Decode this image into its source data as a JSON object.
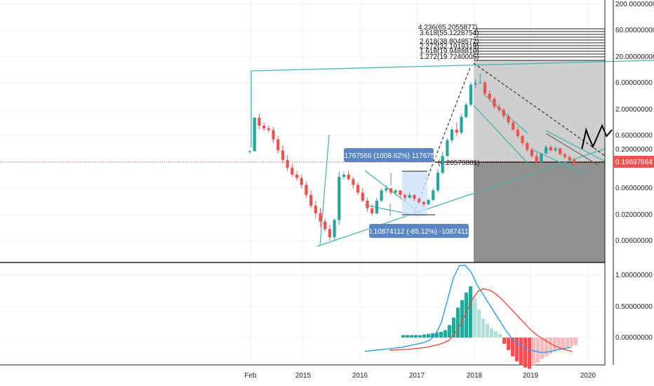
{
  "colors": {
    "up": "#26a69a",
    "up_light": "#b2dfdb",
    "down": "#ef5350",
    "down_light": "#f8bbbb",
    "macd_line": "#2196f3",
    "signal_line": "#f44336",
    "trendline": "#4db6ac",
    "price_line": "#e53935",
    "fib_band_light": "#cfcfcf",
    "fib_band_dark": "#8f8f8f",
    "measure_fill": "#cfe3fb",
    "label_bg": "#5b86c4",
    "axis_text": "#222222"
  },
  "time_axis": {
    "labels": [
      "Feb",
      "2015",
      "2016",
      "2017",
      "2018",
      "2019",
      "2020"
    ]
  },
  "price_axis": {
    "scale": "log",
    "labels": [
      "200.00000000",
      "60.00000000",
      "20.00000000",
      "6.00000000",
      "2.00000000",
      "0.60000000",
      "0.20000000",
      "0.06000000",
      "0.02000000",
      "0.00600000"
    ],
    "last_price_label": "0.19697664"
  },
  "indicator_axis": {
    "labels": [
      "1.00000000",
      "0.50000000",
      "0.00000000"
    ]
  },
  "fib_extension": {
    "labels": [
      "4.236(65.2055877)",
      "3.618(55.1228754)",
      "2.618(38.8048572)",
      "2.272(32.1919319)",
      "1.618(19.9488810)",
      "1.272(19.7240005)"
    ],
    "level_label": "(0.20570881)"
  },
  "measure_up": {
    "label": "0.11767566 (1008.62%) 11767566"
  },
  "measure_down": {
    "label": "-0.10874112 (-85.12%) -10874112"
  },
  "chart_data": {
    "type": "candlestick",
    "price_scale": "log",
    "price_range": [
      0.003,
      250
    ],
    "candles": [
      [
        0.3,
        0.32,
        0.28,
        0.31
      ],
      [
        0.31,
        1.4,
        0.3,
        1.35
      ],
      [
        1.35,
        1.6,
        0.8,
        0.95
      ],
      [
        0.95,
        1.1,
        0.75,
        0.85
      ],
      [
        0.85,
        0.95,
        0.7,
        0.78
      ],
      [
        0.78,
        0.9,
        0.45,
        0.52
      ],
      [
        0.52,
        0.6,
        0.28,
        0.32
      ],
      [
        0.32,
        0.4,
        0.18,
        0.21
      ],
      [
        0.21,
        0.26,
        0.13,
        0.15
      ],
      [
        0.15,
        0.18,
        0.1,
        0.11
      ],
      [
        0.11,
        0.13,
        0.085,
        0.095
      ],
      [
        0.095,
        0.11,
        0.06,
        0.07
      ],
      [
        0.07,
        0.08,
        0.04,
        0.045
      ],
      [
        0.045,
        0.055,
        0.025,
        0.028
      ],
      [
        0.028,
        0.035,
        0.016,
        0.02
      ],
      [
        0.02,
        0.025,
        0.011,
        0.014
      ],
      [
        0.014,
        0.016,
        0.009,
        0.01
      ],
      [
        0.01,
        0.012,
        0.006,
        0.007
      ],
      [
        0.007,
        0.016,
        0.006,
        0.015
      ],
      [
        0.015,
        0.125,
        0.012,
        0.1
      ],
      [
        0.1,
        0.125,
        0.09,
        0.11
      ],
      [
        0.11,
        0.13,
        0.085,
        0.09
      ],
      [
        0.09,
        0.1,
        0.06,
        0.07
      ],
      [
        0.07,
        0.08,
        0.045,
        0.05
      ],
      [
        0.05,
        0.06,
        0.033,
        0.035
      ],
      [
        0.035,
        0.04,
        0.022,
        0.025
      ],
      [
        0.025,
        0.03,
        0.018,
        0.02
      ],
      [
        0.02,
        0.04,
        0.019,
        0.035
      ],
      [
        0.035,
        0.06,
        0.033,
        0.055
      ],
      [
        0.055,
        0.07,
        0.05,
        0.06
      ],
      [
        0.06,
        0.062,
        0.045,
        0.05
      ],
      [
        0.05,
        0.058,
        0.044,
        0.055
      ],
      [
        0.055,
        0.056,
        0.04,
        0.045
      ],
      [
        0.045,
        0.048,
        0.035,
        0.04
      ],
      [
        0.04,
        0.05,
        0.038,
        0.045
      ],
      [
        0.045,
        0.046,
        0.034,
        0.038
      ],
      [
        0.038,
        0.04,
        0.031,
        0.033
      ],
      [
        0.033,
        0.034,
        0.027,
        0.03
      ],
      [
        0.03,
        0.038,
        0.028,
        0.036
      ],
      [
        0.036,
        0.06,
        0.035,
        0.055
      ],
      [
        0.055,
        0.14,
        0.05,
        0.12
      ],
      [
        0.12,
        0.3,
        0.11,
        0.25
      ],
      [
        0.25,
        0.55,
        0.24,
        0.5
      ],
      [
        0.5,
        0.9,
        0.45,
        0.8
      ],
      [
        0.8,
        1.1,
        0.6,
        0.7
      ],
      [
        0.7,
        1.6,
        0.65,
        1.4
      ],
      [
        1.4,
        2.6,
        1.3,
        2.4
      ],
      [
        2.4,
        6.5,
        2.2,
        5.8
      ],
      [
        5.8,
        7.5,
        5.0,
        6.2
      ],
      [
        6.2,
        9.4,
        6.0,
        6.4
      ],
      [
        6.4,
        6.8,
        3.6,
        3.9
      ],
      [
        3.9,
        4.5,
        2.8,
        3.1
      ],
      [
        3.1,
        3.4,
        2.0,
        2.2
      ],
      [
        2.2,
        2.5,
        1.7,
        1.9
      ],
      [
        1.9,
        2.1,
        1.3,
        1.45
      ],
      [
        1.45,
        1.6,
        1.0,
        1.1
      ],
      [
        1.1,
        1.2,
        0.75,
        0.8
      ],
      [
        0.8,
        0.9,
        0.55,
        0.6
      ],
      [
        0.6,
        0.65,
        0.4,
        0.44
      ],
      [
        0.44,
        0.48,
        0.3,
        0.33
      ],
      [
        0.33,
        0.36,
        0.23,
        0.25
      ],
      [
        0.25,
        0.29,
        0.17,
        0.19
      ],
      [
        0.19,
        0.29,
        0.18,
        0.28
      ],
      [
        0.28,
        0.4,
        0.27,
        0.37
      ],
      [
        0.37,
        0.4,
        0.3,
        0.32
      ],
      [
        0.32,
        0.38,
        0.3,
        0.35
      ],
      [
        0.35,
        0.36,
        0.25,
        0.27
      ],
      [
        0.27,
        0.29,
        0.22,
        0.24
      ],
      [
        0.24,
        0.26,
        0.2,
        0.21
      ],
      [
        0.21,
        0.23,
        0.17,
        0.18
      ]
    ],
    "projection": [
      [
        0.21,
        0.3
      ],
      [
        0.26,
        0.5
      ],
      [
        0.32,
        0.75
      ],
      [
        0.38,
        0.6
      ],
      [
        0.5,
        0.35
      ],
      [
        0.62,
        0.6
      ],
      [
        0.74,
        0.85
      ],
      [
        0.86,
        0.6
      ],
      [
        1.0,
        0.75
      ]
    ],
    "macd": {
      "hist": [
        0.04,
        0.04,
        0.04,
        0.04,
        0.04,
        0.05,
        0.06,
        0.07,
        0.08,
        0.09,
        0.12,
        0.2,
        0.32,
        0.48,
        0.6,
        0.72,
        0.82,
        0.62,
        0.45,
        0.3,
        0.22,
        0.15,
        0.1,
        0.06,
        -0.1,
        -0.2,
        -0.3,
        -0.38,
        -0.44,
        -0.48,
        -0.5,
        -0.44,
        -0.4,
        -0.34,
        -0.3,
        -0.26,
        -0.22,
        -0.2,
        -0.18,
        -0.16,
        -0.14,
        -0.12
      ],
      "macd_line": [
        -0.22,
        -0.21,
        -0.2,
        -0.19,
        -0.18,
        -0.17,
        -0.16,
        -0.14,
        -0.12,
        -0.1,
        -0.08,
        -0.04,
        0.05,
        0.25,
        0.6,
        0.95,
        1.15,
        1.16,
        1.05,
        0.85,
        0.7,
        0.55,
        0.4,
        0.25,
        0.1,
        -0.02,
        -0.1,
        -0.16,
        -0.2,
        -0.22,
        -0.24,
        -0.23,
        -0.21,
        -0.19,
        -0.17,
        -0.16
      ],
      "signal_line": [
        -0.2,
        -0.2,
        -0.19,
        -0.19,
        -0.18,
        -0.17,
        -0.16,
        -0.14,
        -0.12,
        -0.09,
        -0.05,
        0.05,
        0.2,
        0.4,
        0.6,
        0.74,
        0.78,
        0.76,
        0.7,
        0.62,
        0.52,
        0.42,
        0.32,
        0.22,
        0.12,
        0.04,
        -0.02,
        -0.08,
        -0.13,
        -0.17,
        -0.2,
        -0.22
      ],
      "range": [
        -0.35,
        1.25
      ]
    }
  }
}
